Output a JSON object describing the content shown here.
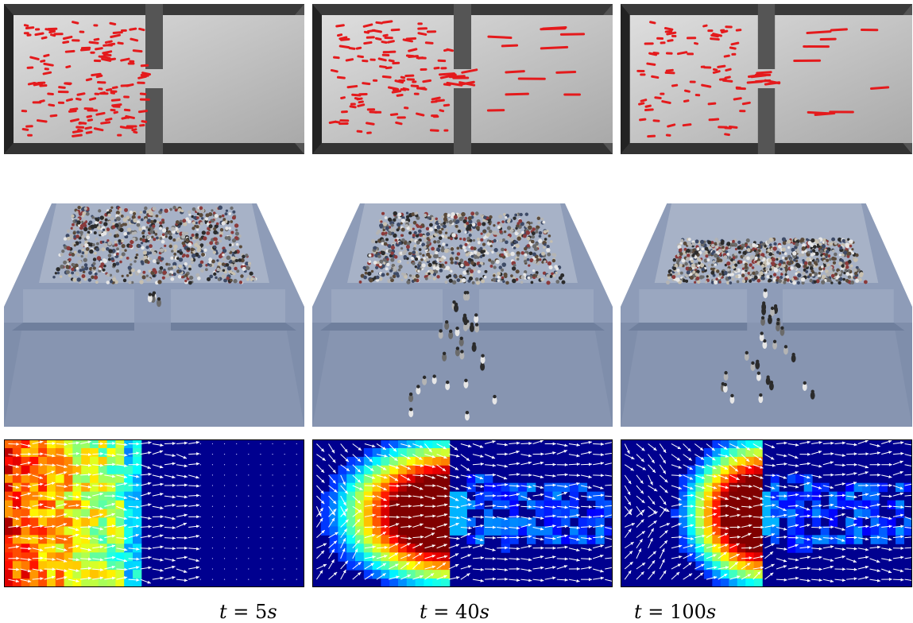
{
  "figure": {
    "captions": [
      {
        "var": "t",
        "eq": "=",
        "value": "5",
        "unit": "s"
      },
      {
        "var": "t",
        "eq": "=",
        "value": "40",
        "unit": "s"
      },
      {
        "var": "t",
        "eq": "=",
        "value": "100",
        "unit": "s"
      }
    ],
    "rows": [
      "agent-simulation-topdown",
      "crowd-rendering-3d",
      "density-velocity-field"
    ],
    "colors": {
      "wall": "#555555",
      "floor_light": "#dedede",
      "floor_dark": "#a9a9a9",
      "agent": "#e41a1c",
      "room3d": "#8a9ab6",
      "field_bg": "#00008f",
      "arrow": "#ffffff"
    }
  }
}
